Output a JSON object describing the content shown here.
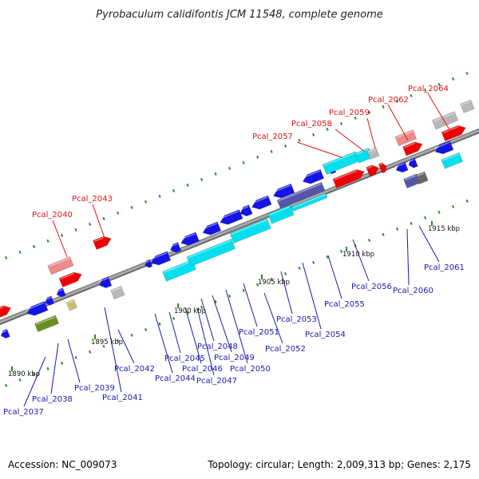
{
  "title": "Pyrobaculum calidifontis JCM 11548, complete genome",
  "footer": {
    "accession": "Accession: NC_009073",
    "topology": "Topology: circular; Length: 2,009,313 bp; Genes: 2,175"
  },
  "colors": {
    "backbone": "#8c8c8c",
    "tick": "#2a8a2a",
    "label_top": "#dd1111",
    "label_bottom": "#1a1aaa",
    "gene_blue": "#1414e6",
    "gene_cyan": "#00e0ee",
    "gene_red": "#ee0000",
    "gene_pink": "#ee8a8a",
    "gene_gray": "#b8b8b8",
    "gene_olive": "#6b8e23",
    "gene_khaki": "#c8c070",
    "gene_slate": "#5555aa",
    "gene_darkgray": "#666666"
  },
  "ruler": {
    "kbp_labels": [
      "1890 kbp",
      "1895 kbp",
      "1900 kbp",
      "1905 kbp",
      "1910 kbp",
      "1915 kbp"
    ]
  },
  "labels_top": [
    "Pcal_2040",
    "Pcal_2043",
    "Pcal_2057",
    "Pcal_2058",
    "Pcal_2059",
    "Pcal_2062",
    "Pcal_2064"
  ],
  "labels_bottom": [
    "Pcal_2037",
    "Pcal_2038",
    "Pcal_2039",
    "Pcal_2041",
    "Pcal_2042",
    "Pcal_2044",
    "Pcal_2045",
    "Pcal_2046",
    "Pcal_2047",
    "Pcal_2048",
    "Pcal_2049",
    "Pcal_2050",
    "Pcal_2051",
    "Pcal_2052",
    "Pcal_2053",
    "Pcal_2054",
    "Pcal_2055",
    "Pcal_2056",
    "Pcal_2060",
    "Pcal_2061"
  ]
}
